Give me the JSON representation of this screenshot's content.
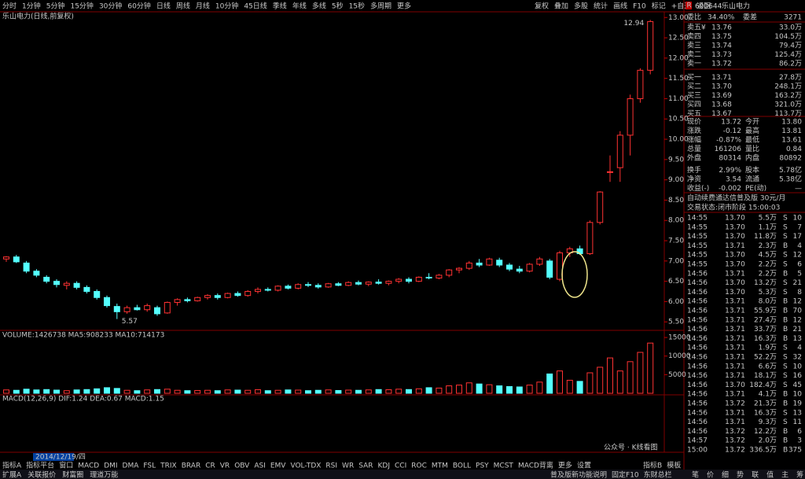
{
  "toolbar": {
    "left": [
      "分时",
      "1分钟",
      "5分钟",
      "15分钟",
      "30分钟",
      "60分钟",
      "日线",
      "周线",
      "月线",
      "10分钟",
      "45日线",
      "季线",
      "年线",
      "多线",
      "5秒",
      "15秒",
      "多周期",
      "更多"
    ],
    "active": 6,
    "right": [
      "复权",
      "叠加",
      "多股",
      "统计",
      "画线",
      "F10",
      "标记",
      "+自选",
      "返回"
    ]
  },
  "chart_subtitle": "乐山电力(日线,前复权)",
  "kline": {
    "ylim": [
      5.33,
      13.16
    ],
    "yticks": [
      {
        "value": 13,
        "label": "13.00"
      },
      {
        "value": 12.5,
        "label": "12.50"
      },
      {
        "value": 12,
        "label": "12.00"
      },
      {
        "value": 11.5,
        "label": "11.50"
      },
      {
        "value": 11,
        "label": "11.00"
      },
      {
        "value": 10.5,
        "label": "10.50"
      },
      {
        "value": 10,
        "label": "10.00"
      },
      {
        "value": 9.5,
        "label": "9.50"
      },
      {
        "value": 9,
        "label": "9.00"
      },
      {
        "value": 8.5,
        "label": "8.50"
      },
      {
        "value": 8,
        "label": "8.00"
      },
      {
        "value": 7.5,
        "label": "7.50"
      },
      {
        "value": 7,
        "label": "7.00"
      },
      {
        "value": 6.5,
        "label": "6.50"
      },
      {
        "value": 6,
        "label": "6.00"
      },
      {
        "value": 5.5,
        "label": "5.50"
      }
    ],
    "up_color": "#ff3232",
    "down_color": "#54ffff",
    "candles": [
      [
        7.05,
        7.12,
        6.98,
        7.1
      ],
      [
        7.1,
        7.15,
        6.95,
        6.98
      ],
      [
        6.95,
        7.0,
        6.7,
        6.75
      ],
      [
        6.75,
        6.8,
        6.6,
        6.65
      ],
      [
        6.6,
        6.65,
        6.45,
        6.5
      ],
      [
        6.5,
        6.55,
        6.35,
        6.42
      ],
      [
        6.4,
        6.5,
        6.3,
        6.45
      ],
      [
        6.45,
        6.5,
        6.3,
        6.35
      ],
      [
        6.35,
        6.4,
        6.2,
        6.25
      ],
      [
        6.25,
        6.3,
        6.05,
        6.1
      ],
      [
        6.1,
        6.15,
        5.85,
        5.9
      ],
      [
        5.88,
        5.95,
        5.57,
        5.75
      ],
      [
        5.75,
        5.9,
        5.7,
        5.85
      ],
      [
        5.85,
        5.92,
        5.78,
        5.8
      ],
      [
        5.8,
        5.95,
        5.75,
        5.9
      ],
      [
        5.85,
        5.9,
        5.65,
        5.7
      ],
      [
        5.72,
        6.0,
        5.7,
        5.98
      ],
      [
        5.98,
        6.08,
        5.9,
        6.05
      ],
      [
        6.05,
        6.1,
        5.98,
        6.02
      ],
      [
        6.02,
        6.12,
        6.0,
        6.1
      ],
      [
        6.1,
        6.18,
        6.05,
        6.15
      ],
      [
        6.15,
        6.2,
        6.05,
        6.1
      ],
      [
        6.1,
        6.22,
        6.08,
        6.2
      ],
      [
        6.2,
        6.25,
        6.12,
        6.15
      ],
      [
        6.15,
        6.28,
        6.12,
        6.25
      ],
      [
        6.25,
        6.35,
        6.2,
        6.3
      ],
      [
        6.3,
        6.35,
        6.25,
        6.28
      ],
      [
        6.28,
        6.4,
        6.25,
        6.38
      ],
      [
        6.38,
        6.42,
        6.3,
        6.33
      ],
      [
        6.33,
        6.45,
        6.3,
        6.42
      ],
      [
        6.42,
        6.48,
        6.36,
        6.4
      ],
      [
        6.4,
        6.45,
        6.32,
        6.36
      ],
      [
        6.36,
        6.46,
        6.34,
        6.44
      ],
      [
        6.44,
        6.48,
        6.38,
        6.4
      ],
      [
        6.4,
        6.5,
        6.38,
        6.47
      ],
      [
        6.47,
        6.52,
        6.4,
        6.43
      ],
      [
        6.43,
        6.5,
        6.38,
        6.48
      ],
      [
        6.48,
        6.55,
        6.42,
        6.45
      ],
      [
        6.45,
        6.52,
        6.4,
        6.5
      ],
      [
        6.5,
        6.58,
        6.45,
        6.55
      ],
      [
        6.55,
        6.6,
        6.45,
        6.5
      ],
      [
        6.5,
        6.62,
        6.48,
        6.6
      ],
      [
        6.6,
        6.7,
        6.55,
        6.58
      ],
      [
        6.58,
        6.68,
        6.55,
        6.65
      ],
      [
        6.65,
        6.8,
        6.6,
        6.78
      ],
      [
        6.78,
        6.85,
        6.7,
        6.82
      ],
      [
        6.82,
        7.0,
        6.78,
        6.95
      ],
      [
        6.95,
        7.05,
        6.85,
        6.9
      ],
      [
        6.9,
        7.08,
        6.88,
        7.05
      ],
      [
        7.02,
        7.08,
        6.85,
        6.9
      ],
      [
        6.9,
        6.95,
        6.75,
        6.8
      ],
      [
        6.8,
        6.88,
        6.7,
        6.75
      ],
      [
        6.75,
        6.95,
        6.72,
        6.92
      ],
      [
        6.92,
        7.1,
        6.88,
        7.05
      ],
      [
        7.0,
        7.05,
        6.55,
        6.6
      ],
      [
        6.55,
        7.25,
        6.5,
        7.2
      ],
      [
        7.2,
        7.35,
        7.1,
        7.3
      ],
      [
        7.3,
        7.38,
        7.15,
        7.18
      ],
      [
        7.18,
        8.0,
        7.15,
        7.95
      ],
      [
        7.95,
        8.72,
        7.9,
        8.7
      ],
      [
        9.2,
        9.6,
        8.95,
        9.2
      ],
      [
        9.3,
        10.2,
        8.95,
        10.1
      ],
      [
        10.1,
        11.1,
        9.6,
        11.0
      ],
      [
        11.0,
        11.75,
        10.9,
        11.7
      ],
      [
        11.7,
        12.94,
        11.6,
        12.9
      ]
    ],
    "high_label": "12.94",
    "low_label": "5.57"
  },
  "volume": {
    "label": "VOLUME:1426738  MA5:908233  MA10:714173",
    "ylim": [
      0,
      16500
    ],
    "yticks": [
      15000,
      10000,
      5000
    ],
    "values": [
      900,
      800,
      1100,
      900,
      1000,
      850,
      700,
      900,
      1000,
      1200,
      1500,
      1300,
      800,
      700,
      900,
      1000,
      1100,
      800,
      700,
      750,
      800,
      700,
      900,
      850,
      800,
      950,
      700,
      800,
      900,
      850,
      700,
      800,
      900,
      750,
      850,
      800,
      900,
      1000,
      950,
      1100,
      1000,
      1200,
      1500,
      1400,
      2000,
      2200,
      2800,
      2500,
      2300,
      2000,
      1800,
      1700,
      2200,
      3000,
      5200,
      6000,
      3500,
      3200,
      5500,
      7000,
      9500,
      6000,
      8500,
      11000,
      13500
    ]
  },
  "macd": {
    "label": "MACD(12,26,9)  DIF:1.24  DEA:0.67  MACD:1.15"
  },
  "date_label": "2014/12/19/四",
  "indicator_tabs": [
    "指标A",
    "指标平台",
    "窗口",
    "MACD",
    "DMI",
    "DMA",
    "FSL",
    "TRIX",
    "BRAR",
    "CR",
    "VR",
    "OBV",
    "ASI",
    "EMV",
    "VOL-TDX",
    "RSI",
    "WR",
    "SAR",
    "KDJ",
    "CCI",
    "ROC",
    "MTM",
    "BOLL",
    "PSY",
    "MCST",
    "MACD背离",
    "更多",
    "设置"
  ],
  "indicator_tabs_right": [
    "指标B",
    "模板"
  ],
  "bottom_bar": [
    "扩展A",
    "关联报价",
    "财富圈",
    "理道万能"
  ],
  "bottom_bar_right": [
    "普及版新功能说明",
    "固定F10",
    "东财总栏"
  ],
  "panel_tabs": [
    "笔",
    "价",
    "细",
    "势",
    "联",
    "值",
    "主",
    "筹"
  ],
  "quote": {
    "badge": "R",
    "code": "600644",
    "name": "乐山电力",
    "wb_label": "委比",
    "wb": "34.40%",
    "wc_label": "委差",
    "wc": "3271",
    "book": [
      [
        "卖五¥",
        "13.76",
        "33.0万"
      ],
      [
        "卖四",
        "13.75",
        "104.5万"
      ],
      [
        "卖三",
        "13.74",
        "79.4万"
      ],
      [
        "卖二",
        "13.73",
        "125.4万"
      ],
      [
        "卖一",
        "13.72",
        "86.2万"
      ],
      [
        "买一",
        "13.71",
        "27.8万"
      ],
      [
        "买二",
        "13.70",
        "248.1万"
      ],
      [
        "买三",
        "13.69",
        "163.2万"
      ],
      [
        "买四",
        "13.68",
        "321.0万"
      ],
      [
        "买五",
        "13.67",
        "113.7万"
      ]
    ],
    "stats": [
      [
        "现价",
        "13.72",
        "#00e600",
        "今开",
        "13.80",
        "#00e600"
      ],
      [
        "涨跌",
        "-0.12",
        "#00e600",
        "最高",
        "13.81",
        "#00e600"
      ],
      [
        "涨幅",
        "-0.87%",
        "#00e600",
        "最低",
        "13.61",
        "#00e600"
      ],
      [
        "总量",
        "161206",
        "#ffff00",
        "量比",
        "0.84",
        "#ffff00"
      ],
      [
        "外盘",
        "80314",
        "#ff3232",
        "内盘",
        "80892",
        "#00e600"
      ],
      [
        "换手",
        "2.99%",
        "#e0e0e0",
        "股本",
        "5.78亿",
        "#e0e0e0"
      ],
      [
        "净资",
        "3.54",
        "#e0e0e0",
        "流通",
        "5.38亿",
        "#e0e0e0"
      ],
      [
        "收益(-)",
        "-0.002",
        "#e0e0e0",
        "PE(动)",
        "—",
        "#e0e0e0"
      ]
    ],
    "promo": "自动续费通达信普及版 30元/月",
    "status": "交易状态:闭市阶段 15:00:03"
  },
  "side_colors": {
    "B": "#ff3232",
    "S": "#00e600"
  },
  "ticks": [
    [
      "14:55",
      "13.70",
      "5.5万",
      "S",
      "10"
    ],
    [
      "14:55",
      "13.70",
      "1.1万",
      "S",
      "7"
    ],
    [
      "14:55",
      "13.70",
      "11.8万",
      "S",
      "17"
    ],
    [
      "14:55",
      "13.71",
      "2.3万",
      "B",
      "4"
    ],
    [
      "14:55",
      "13.70",
      "4.5万",
      "S",
      "12"
    ],
    [
      "14:55",
      "13.70",
      "2.2万",
      "S",
      "6"
    ],
    [
      "14:56",
      "13.71",
      "2.2万",
      "B",
      "5"
    ],
    [
      "14:56",
      "13.70",
      "13.2万",
      "S",
      "21"
    ],
    [
      "14:56",
      "13.70",
      "5.3万",
      "S",
      "8"
    ],
    [
      "14:56",
      "13.71",
      "8.0万",
      "B",
      "12"
    ],
    [
      "14:56",
      "13.71",
      "55.9万",
      "B",
      "70"
    ],
    [
      "14:56",
      "13.71",
      "27.4万",
      "B",
      "12"
    ],
    [
      "14:56",
      "13.71",
      "33.7万",
      "B",
      "21"
    ],
    [
      "14:56",
      "13.71",
      "16.3万",
      "B",
      "13"
    ],
    [
      "14:56",
      "13.71",
      "1.9万",
      "S",
      "4"
    ],
    [
      "14:56",
      "13.71",
      "52.2万",
      "S",
      "32"
    ],
    [
      "14:56",
      "13.71",
      "6.6万",
      "S",
      "10"
    ],
    [
      "14:56",
      "13.71",
      "18.1万",
      "S",
      "16"
    ],
    [
      "14:56",
      "13.70",
      "182.4万",
      "S",
      "45"
    ],
    [
      "14:56",
      "13.71",
      "4.1万",
      "B",
      "10"
    ],
    [
      "14:56",
      "13.72",
      "21.3万",
      "B",
      "19"
    ],
    [
      "14:56",
      "13.71",
      "16.3万",
      "S",
      "13"
    ],
    [
      "14:56",
      "13.71",
      "9.3万",
      "S",
      "11"
    ],
    [
      "14:56",
      "13.72",
      "12.2万",
      "B",
      "6"
    ],
    [
      "14:57",
      "13.72",
      "2.0万",
      "B",
      "3"
    ],
    [
      "15:00",
      "13.72",
      "336.5万",
      "B",
      "375"
    ]
  ],
  "watermark": "公众号 · K线看图"
}
